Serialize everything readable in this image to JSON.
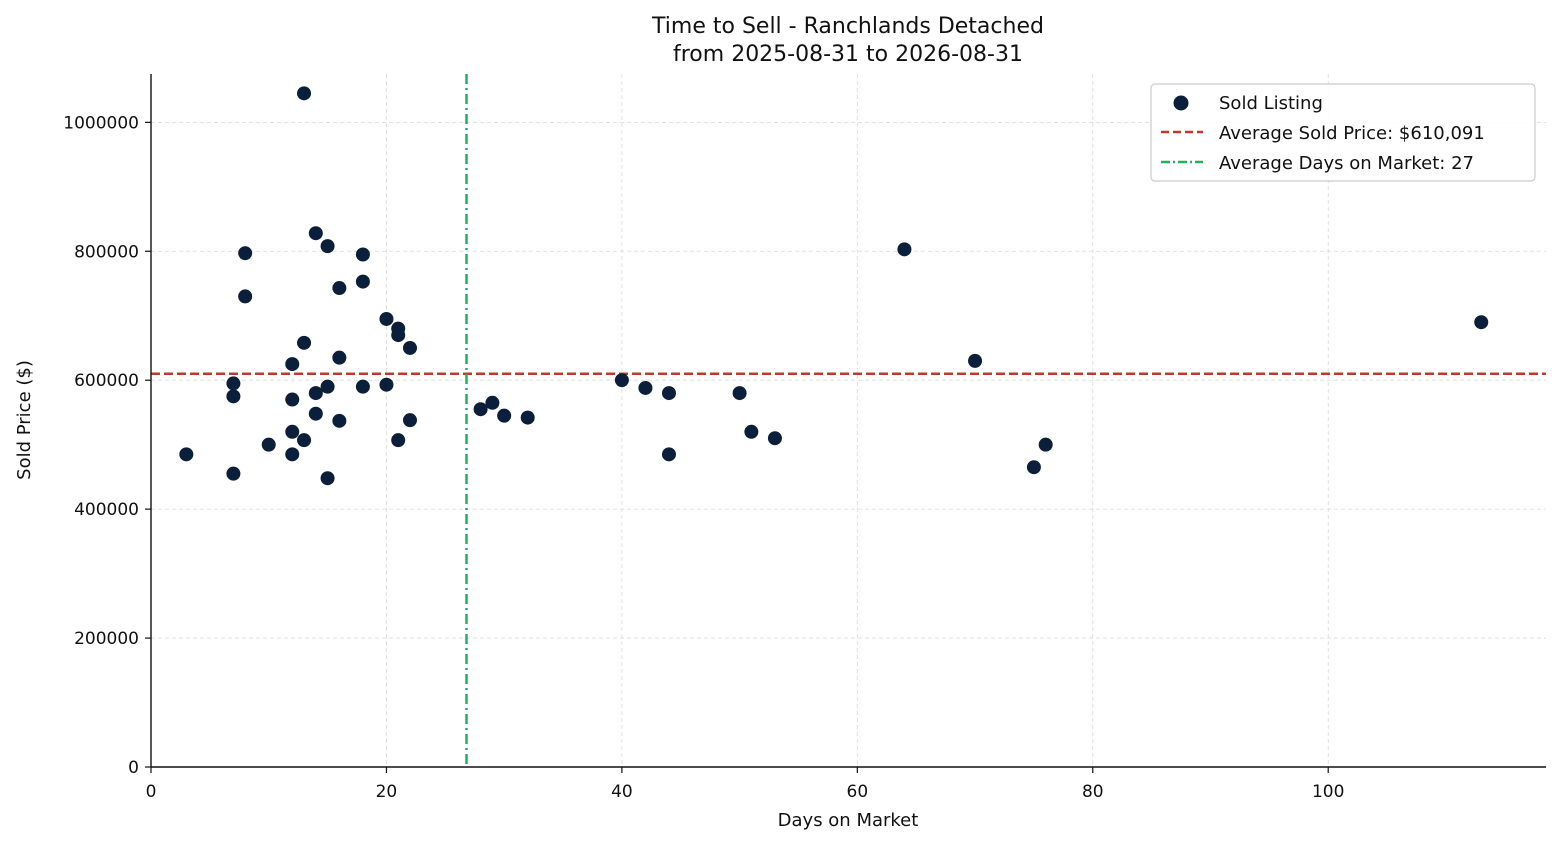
{
  "chart_data": {
    "type": "scatter",
    "title": "Time to Sell - Ranchlands Detached",
    "subtitle": "from 2025-08-31 to 2026-08-31",
    "xlabel": "Days on Market",
    "ylabel": "Sold Price ($)",
    "xlim": [
      0,
      118.5
    ],
    "ylim": [
      0,
      1075000
    ],
    "xticks": [
      0,
      20,
      40,
      60,
      80,
      100
    ],
    "yticks": [
      0,
      200000,
      400000,
      600000,
      800000,
      1000000
    ],
    "grid": true,
    "legend_position": "top-right",
    "colors": {
      "points": "#0b1f3a",
      "avg_price_line": "#c0392b",
      "avg_days_line": "#27ae60",
      "grid": "#d9d9d9"
    },
    "series": [
      {
        "name": "Sold Listing",
        "points": [
          [
            3,
            485000
          ],
          [
            7,
            455000
          ],
          [
            7,
            575000
          ],
          [
            7,
            595000
          ],
          [
            8,
            797000
          ],
          [
            8,
            730000
          ],
          [
            10,
            500000
          ],
          [
            12,
            485000
          ],
          [
            12,
            520000
          ],
          [
            12,
            570000
          ],
          [
            12,
            625000
          ],
          [
            13,
            1045000
          ],
          [
            13,
            658000
          ],
          [
            13,
            507000
          ],
          [
            14,
            828000
          ],
          [
            14,
            580000
          ],
          [
            14,
            548000
          ],
          [
            15,
            808000
          ],
          [
            15,
            590000
          ],
          [
            15,
            448000
          ],
          [
            16,
            743000
          ],
          [
            16,
            635000
          ],
          [
            16,
            537000
          ],
          [
            18,
            795000
          ],
          [
            18,
            753000
          ],
          [
            18,
            590000
          ],
          [
            20,
            695000
          ],
          [
            20,
            593000
          ],
          [
            21,
            680000
          ],
          [
            21,
            670000
          ],
          [
            21,
            507000
          ],
          [
            22,
            650000
          ],
          [
            22,
            538000
          ],
          [
            28,
            555000
          ],
          [
            29,
            565000
          ],
          [
            30,
            545000
          ],
          [
            32,
            542000
          ],
          [
            40,
            600000
          ],
          [
            42,
            588000
          ],
          [
            44,
            580000
          ],
          [
            44,
            485000
          ],
          [
            50,
            580000
          ],
          [
            51,
            520000
          ],
          [
            53,
            510000
          ],
          [
            64,
            803000
          ],
          [
            70,
            630000
          ],
          [
            75,
            465000
          ],
          [
            76,
            500000
          ],
          [
            113,
            690000
          ]
        ]
      }
    ],
    "reference_lines": {
      "avg_price": {
        "value": 610091,
        "label": "Average Sold Price: $610,091"
      },
      "avg_days": {
        "value": 26.8,
        "label": "Average Days on Market: 27"
      }
    }
  }
}
